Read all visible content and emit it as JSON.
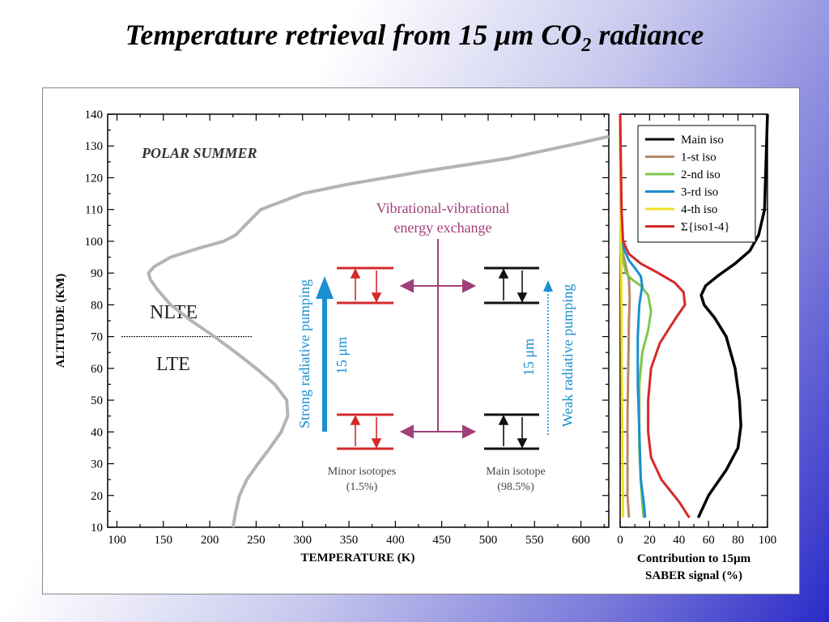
{
  "slide": {
    "title_prefix": "Temperature retrieval from 15 ",
    "title_mu": "μ",
    "title_mid": "m CO",
    "title_sub": "2",
    "title_suffix": " radiance"
  },
  "colors": {
    "main_iso": "#000000",
    "iso1": "#b8876a",
    "iso2": "#7ec84a",
    "iso3": "#1a8fd0",
    "iso4": "#f0e020",
    "sum": "#d42a2a",
    "temperature": "#b4b4b4",
    "vv": "#a0407a",
    "pump": "#1a8fd0"
  },
  "annotations": {
    "season": "POLAR SUMMER",
    "nlte": "NLTE",
    "lte": "LTE",
    "vv_line1": "Vibrational-vibrational",
    "vv_line2": "energy exchange",
    "strong": "Strong radiative pumping",
    "weak": "Weak radiative pumping",
    "wl_left": "15 μm",
    "wl_right": "15 μm",
    "minor_line1": "Minor isotopes",
    "minor_line2": "(1.5%)",
    "main_line1": "Main isotope",
    "main_line2": "(98.5%)"
  },
  "chart_data": [
    {
      "type": "line",
      "title": "",
      "xlabel": "TEMPERATURE (K)",
      "ylabel": "ALTITUDE (KM)",
      "xlim": [
        90,
        630
      ],
      "ylim": [
        10,
        140
      ],
      "xticks": [
        100,
        150,
        200,
        250,
        300,
        350,
        400,
        450,
        500,
        550,
        600
      ],
      "yticks": [
        10,
        20,
        30,
        40,
        50,
        60,
        70,
        80,
        90,
        100,
        110,
        120,
        130,
        140
      ],
      "nlte_lte_boundary_km": 70,
      "series": [
        {
          "x": [
            225,
            228,
            232,
            240,
            252,
            265,
            277,
            284,
            283,
            270,
            250,
            228,
            205,
            180,
            158,
            143,
            136,
            134,
            140,
            158,
            190,
            215,
            228,
            238,
            255,
            300,
            350,
            430,
            520,
            600,
            630
          ],
          "y": [
            10,
            15,
            20,
            25,
            30,
            35,
            40,
            45,
            50,
            55,
            60,
            65,
            70,
            75,
            80,
            85,
            88,
            90,
            92,
            95,
            98,
            100,
            102,
            105,
            110,
            115,
            118,
            122,
            126,
            131,
            133
          ]
        }
      ]
    },
    {
      "type": "line",
      "title": "",
      "xlabel": "Contribution to 15μm",
      "xlabel2": "SABER signal (%)",
      "ylabel": "",
      "xlim": [
        0,
        100
      ],
      "ylim": [
        10,
        140
      ],
      "xticks": [
        0,
        20,
        40,
        60,
        80,
        100
      ],
      "legend_position": "top-right",
      "series": [
        {
          "name": "Main iso",
          "color_key": "main_iso",
          "x": [
            53,
            60,
            72,
            80,
            82,
            81,
            78,
            72,
            64,
            57,
            55,
            58,
            66,
            78,
            88,
            94,
            98,
            99,
            100
          ],
          "y": [
            13,
            20,
            28,
            35,
            42,
            50,
            60,
            70,
            76,
            80,
            83,
            86,
            89,
            93,
            97,
            102,
            110,
            125,
            140
          ]
        },
        {
          "name": "1-st iso",
          "color_key": "iso1",
          "x": [
            6,
            5,
            5,
            5,
            5.5,
            6,
            6.5,
            6,
            4,
            2,
            1,
            0.5,
            0
          ],
          "y": [
            13,
            20,
            30,
            45,
            60,
            75,
            82,
            88,
            92,
            96,
            100,
            110,
            140
          ]
        },
        {
          "name": "2-nd iso",
          "color_key": "iso2",
          "x": [
            16,
            15,
            14,
            13,
            13,
            15,
            19,
            21,
            19,
            14,
            8,
            4,
            2,
            1,
            0.5,
            0
          ],
          "y": [
            13,
            18,
            25,
            35,
            55,
            65,
            72,
            78,
            83,
            86,
            88,
            90,
            94,
            100,
            110,
            140
          ]
        },
        {
          "name": "3-rd iso",
          "color_key": "iso3",
          "x": [
            17,
            16,
            14,
            13,
            12,
            12,
            13,
            15,
            14,
            11,
            6,
            3,
            1,
            0.5,
            0
          ],
          "y": [
            13,
            18,
            25,
            40,
            55,
            70,
            80,
            86,
            89,
            91,
            94,
            97,
            100,
            110,
            140
          ]
        },
        {
          "name": "4-th iso",
          "color_key": "iso4",
          "x": [
            2,
            1.8,
            1.5,
            1.2,
            1,
            0.8,
            0.6,
            0.3,
            0
          ],
          "y": [
            13,
            20,
            35,
            55,
            70,
            85,
            95,
            105,
            140
          ]
        },
        {
          "name": "Σ{iso1-4}",
          "color_key": "sum",
          "x": [
            47,
            40,
            28,
            21,
            19,
            19,
            21,
            27,
            38,
            44,
            43,
            37,
            26,
            14,
            6,
            2,
            1,
            0
          ],
          "y": [
            13,
            18,
            25,
            32,
            40,
            50,
            60,
            68,
            76,
            80,
            84,
            87,
            90,
            93,
            96,
            100,
            110,
            140
          ]
        }
      ]
    }
  ]
}
